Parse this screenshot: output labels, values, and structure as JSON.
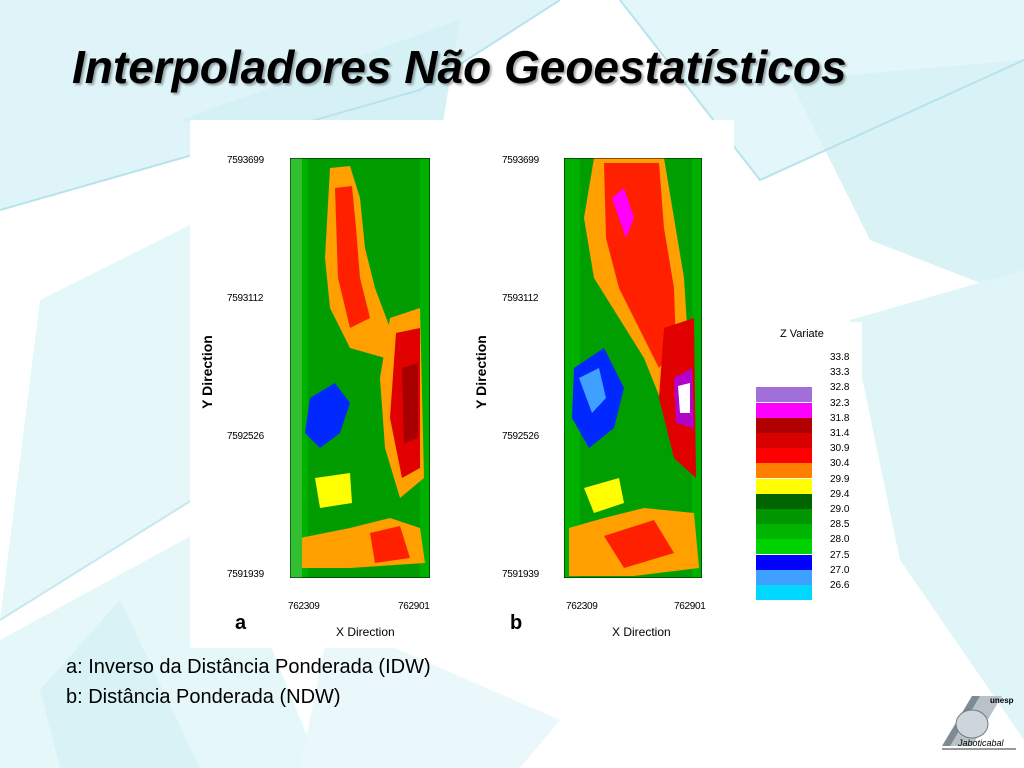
{
  "slide": {
    "title": "Interpoladores Não Geoestatísticos",
    "captions": [
      "a: Inverso da Distância Ponderada (IDW)",
      "b: Distância Ponderada (NDW)"
    ],
    "logo_text": [
      "unesp",
      "Jaboticabal"
    ]
  },
  "maps": [
    {
      "letter": "a",
      "y_ticks": [
        "7593699",
        "7593112",
        "7592526",
        "7591939"
      ],
      "x_ticks": [
        "762309",
        "762901"
      ],
      "x_label": "X Direction",
      "y_label": "Y Direction"
    },
    {
      "letter": "b",
      "y_ticks": [
        "7593699",
        "7593112",
        "7592526",
        "7591939"
      ],
      "x_ticks": [
        "762309",
        "762901"
      ],
      "x_label": "X Direction",
      "y_label": "Y Direction"
    }
  ],
  "legend": {
    "title": "Z Variate",
    "values": [
      "33.8",
      "33.3",
      "32.8",
      "32.3",
      "31.8",
      "31.4",
      "30.9",
      "30.4",
      "29.9",
      "29.4",
      "29.0",
      "28.5",
      "28.0",
      "27.5",
      "27.0",
      "26.6"
    ],
    "colors": [
      "#a070d8",
      "#ff00ff",
      "#b00000",
      "#d80000",
      "#ff0000",
      "#ff8000",
      "#ffff00",
      "#006400",
      "#009600",
      "#00b400",
      "#00d200",
      "#0000ff",
      "#40a0ff",
      "#00d8ff"
    ]
  }
}
